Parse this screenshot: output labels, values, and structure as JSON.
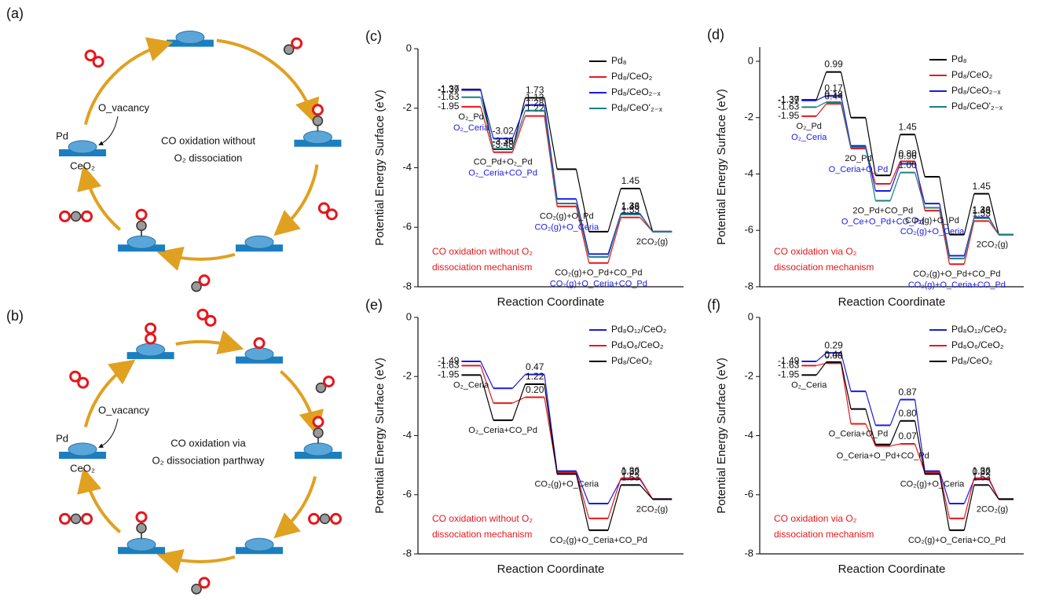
{
  "diagrams": [
    {
      "label": "(a)",
      "title_lines": [
        "CO oxidation without",
        "O₂ dissociation"
      ],
      "vacancy": "O_vacancy",
      "metal": "Pd",
      "support": "CeO₂"
    },
    {
      "label": "(b)",
      "title_lines": [
        "CO oxidation via",
        "O₂ dissociation parthway"
      ],
      "vacancy": "O_vacancy",
      "metal": "Pd",
      "support": "CeO₂"
    }
  ],
  "chart_data": [
    {
      "panel": "(c)",
      "type": "line",
      "xlabel": "Reaction Coordinate",
      "ylabel": "Potential Energy Surface (eV)",
      "ylim": [
        -8,
        0
      ],
      "yticks": [
        -8,
        -6,
        -4,
        -2,
        0
      ],
      "legend": "top-right",
      "note_lines": [
        "CO oxidation without O₂",
        "dissociation mechanism"
      ],
      "categories": [
        "O₂_Pd",
        "CO_Pd+O₂_Pd",
        null,
        "CO₂(g)+O_Pd",
        "CO₂(g)+O_Pd+CO_Pd",
        null,
        "2CO₂(g)"
      ],
      "alt_labels": [
        "O₂_Ceria",
        "O₂_Ceria+CO_Pd",
        null,
        "CO₂(g)+O_Ceria",
        "CO₂(g)+O_Ceria+CO_Pd",
        null,
        null
      ],
      "series": [
        {
          "name": "Pd₈",
          "color": "#000000",
          "values": [
            -1.37,
            -3.38,
            -1.65,
            -4.05,
            -6.15,
            -4.7,
            -6.15
          ],
          "annotations": [
            "-1.37",
            "-3.38",
            "1.73",
            null,
            null,
            "1.45",
            null
          ]
        },
        {
          "name": "Pd₈/CeO₂",
          "color": "#e8161b",
          "values": [
            -1.95,
            -3.48,
            -2.26,
            -5.3,
            -7.2,
            -5.67,
            -6.15
          ],
          "annotations": [
            "-1.95",
            "-3.48",
            "1.22",
            null,
            null,
            "1.53",
            null
          ]
        },
        {
          "name": "Pd₈/CeO₂₋ₓ",
          "color": "#1a1ae6",
          "values": [
            -1.39,
            -3.02,
            -1.89,
            -5.05,
            -6.9,
            -5.54,
            -6.15
          ],
          "annotations": [
            "-1.39",
            "-3.02",
            "1.13",
            null,
            null,
            "1.36",
            null
          ]
        },
        {
          "name": "Pd₈/CeO'₂₋ₓ",
          "color": "#1a8080",
          "values": [
            -1.63,
            -3.36,
            -2.08,
            -5.2,
            -7.0,
            -5.57,
            -6.15
          ],
          "annotations": [
            "-1.63",
            "-3.36",
            "1.28",
            null,
            null,
            "1.43",
            null
          ]
        }
      ]
    },
    {
      "panel": "(d)",
      "type": "line",
      "xlabel": "Reaction Coordinate",
      "ylabel": "Potential Energy Surface (eV)",
      "ylim": [
        -8,
        0.5
      ],
      "yticks": [
        -8,
        -6,
        -4,
        -2,
        0
      ],
      "legend": "top-right",
      "note_lines": [
        "CO oxidation via O₂",
        "dissociation mechanism"
      ],
      "categories": [
        "O₂_Pd",
        null,
        "2O_Pd",
        "2O_Pd+CO_Pd",
        null,
        "CO₂(g)+O_Pd",
        "CO₂(g)+O_Pd+CO_Pd",
        null,
        "2CO₂(g)"
      ],
      "alt_labels": [
        "O₂_Ceria",
        null,
        "O_Ceria+O_Pd",
        "O_Ce+O_Pd+CO_Pd",
        null,
        "CO₂(g)+O_Ceria",
        "CO₂(g)+O_Ceria+CO_Pd",
        null,
        null
      ],
      "series": [
        {
          "name": "Pd₈",
          "color": "#000000",
          "values": [
            -1.37,
            -0.38,
            -2.0,
            -4.05,
            -2.6,
            -4.1,
            -6.15,
            -4.7,
            -6.15
          ],
          "annotations": [
            "-1.37",
            "0.99",
            null,
            null,
            "1.45",
            null,
            null,
            "1.45",
            null
          ]
        },
        {
          "name": "Pd₈/CeO₂",
          "color": "#e8161b",
          "values": [
            -1.95,
            -1.51,
            -3.1,
            -4.35,
            -3.55,
            -5.3,
            -7.2,
            -5.67,
            -6.15
          ],
          "annotations": [
            "-1.95",
            "0.44",
            null,
            null,
            "0.80",
            null,
            null,
            "1.53",
            null
          ]
        },
        {
          "name": "Pd₈/CeO₂₋ₓ",
          "color": "#1a1ae6",
          "values": [
            -1.39,
            -1.22,
            -3.0,
            -4.6,
            -3.64,
            -5.05,
            -6.9,
            -5.54,
            -6.15
          ],
          "annotations": [
            "-1.39",
            "0.17",
            null,
            null,
            "0.96",
            null,
            null,
            "1.36",
            null
          ]
        },
        {
          "name": "Pd₈/CeO'₂₋ₓ",
          "color": "#1a8080",
          "values": [
            -1.63,
            -1.45,
            -3.05,
            -4.95,
            -3.95,
            -5.2,
            -7.0,
            -5.57,
            -6.15
          ],
          "annotations": [
            "-1.63",
            "0.18",
            null,
            null,
            "1.00",
            null,
            null,
            "1.43",
            null
          ]
        }
      ]
    },
    {
      "panel": "(e)",
      "type": "line",
      "xlabel": "Reaction Coordinate",
      "ylabel": "Potential Energy Surface (eV)",
      "ylim": [
        -8,
        0
      ],
      "yticks": [
        -8,
        -6,
        -4,
        -2,
        0
      ],
      "legend": "top-right",
      "note_lines": [
        "CO oxidation without O₂",
        "dissociation mechanism"
      ],
      "categories": [
        "O₂_Ceria",
        "O₂_Ceria+CO_Pd",
        null,
        "CO₂(g)+O_Ceria",
        "CO₂(g)+O_Ceria+CO_Pd",
        null,
        "2CO₂(g)"
      ],
      "alt_labels": [
        null,
        null,
        null,
        null,
        null,
        null,
        null
      ],
      "series": [
        {
          "name": "Pd₈O₁₂/CeO₂",
          "color": "#1a1ae6",
          "values": [
            -1.49,
            -2.4,
            -1.93,
            -5.2,
            -6.3,
            -5.48,
            -6.15
          ],
          "annotations": [
            "-1.49",
            null,
            "0.47",
            null,
            null,
            "0.82",
            null
          ]
        },
        {
          "name": "Pd₈O₆/CeO₂",
          "color": "#e8161b",
          "values": [
            -1.63,
            -2.9,
            -2.7,
            -5.25,
            -6.8,
            -5.44,
            -6.15
          ],
          "annotations": [
            "-1.63",
            null,
            "0.20",
            null,
            null,
            "1.36",
            null
          ]
        },
        {
          "name": "Pd₈/CeO₂",
          "color": "#000000",
          "values": [
            -1.95,
            -3.48,
            -2.26,
            -5.3,
            -7.2,
            -5.67,
            -6.15
          ],
          "annotations": [
            "-1.95",
            null,
            "1.22",
            null,
            null,
            "1.53",
            null
          ]
        }
      ]
    },
    {
      "panel": "(f)",
      "type": "line",
      "xlabel": "Reaction Coordinate",
      "ylabel": "Potential Energy Surface (eV)",
      "ylim": [
        -8,
        0
      ],
      "yticks": [
        -8,
        -6,
        -4,
        -2,
        0
      ],
      "legend": "top-right",
      "note_lines": [
        "CO oxidation via O₂",
        "dissociation mechanism"
      ],
      "categories": [
        "O₂_Ceria",
        null,
        "O_Ceria+O_Pd",
        "O_Ceria+O_Pd+CO_Pd",
        null,
        "CO₂(g)+O_Ceria",
        "CO₂(g)+O_Ceria+CO_Pd",
        null,
        "2CO₂(g)"
      ],
      "alt_labels": [
        null,
        null,
        null,
        null,
        null,
        null,
        null,
        null,
        null
      ],
      "series": [
        {
          "name": "Pd₈O₁₂/CeO₂",
          "color": "#1a1ae6",
          "values": [
            -1.49,
            -1.2,
            -2.5,
            -3.65,
            -2.78,
            -5.2,
            -6.3,
            -5.48,
            -6.15
          ],
          "annotations": [
            "-1.49",
            "0.29",
            null,
            null,
            "0.87",
            null,
            null,
            "0.82",
            null
          ]
        },
        {
          "name": "Pd₈O₆/CeO₂",
          "color": "#e8161b",
          "values": [
            -1.63,
            -1.55,
            -3.6,
            -4.35,
            -4.28,
            -5.25,
            -6.8,
            -5.44,
            -6.15
          ],
          "annotations": [
            "-1.63",
            "0.08",
            null,
            null,
            "0.07",
            null,
            null,
            "1.36",
            null
          ]
        },
        {
          "name": "Pd₈/CeO₂",
          "color": "#000000",
          "values": [
            -1.95,
            -1.51,
            -3.1,
            -4.3,
            -3.5,
            -5.3,
            -7.2,
            -5.67,
            -6.15
          ],
          "annotations": [
            "-1.95",
            "0.44",
            null,
            null,
            "0.80",
            null,
            null,
            "1.53",
            null
          ]
        }
      ]
    }
  ]
}
